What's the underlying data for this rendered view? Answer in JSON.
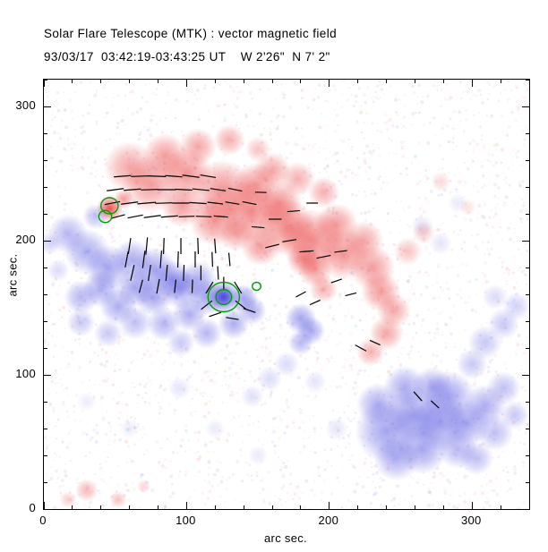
{
  "chart_data": {
    "type": "heatmap",
    "title": "Solar Flare Telescope (MTK) : vector magnetic field",
    "subtitle": "93/03/17  03:42:19-03:43:25 UT    W 2'26\"  N 7' 2\"",
    "xlabel": "arc sec.",
    "ylabel": "arc sec.",
    "xlim": [
      0,
      340
    ],
    "ylim": [
      0,
      320
    ],
    "xticks": [
      0,
      100,
      200,
      300
    ],
    "yticks": [
      0,
      100,
      200,
      300
    ],
    "minor_tick_interval": 20,
    "grid": false,
    "legend": false,
    "colors": {
      "positive_polarity": "#e83737",
      "negative_polarity": "#4848de",
      "contour": "#00a000",
      "vector": "#000000",
      "background": "#ffffff"
    },
    "blobs": [
      [
        60,
        255,
        18,
        1,
        0.45
      ],
      [
        85,
        263,
        16,
        1,
        0.5
      ],
      [
        108,
        270,
        13,
        1,
        0.45
      ],
      [
        130,
        275,
        11,
        1,
        0.4
      ],
      [
        150,
        268,
        9,
        1,
        0.3
      ],
      [
        75,
        242,
        20,
        1,
        0.5
      ],
      [
        100,
        250,
        18,
        1,
        0.55
      ],
      [
        125,
        237,
        22,
        1,
        0.55
      ],
      [
        148,
        242,
        15,
        1,
        0.5
      ],
      [
        160,
        252,
        13,
        1,
        0.45
      ],
      [
        178,
        246,
        12,
        1,
        0.4
      ],
      [
        196,
        236,
        11,
        1,
        0.4
      ],
      [
        145,
        222,
        22,
        1,
        0.6
      ],
      [
        165,
        228,
        16,
        1,
        0.55
      ],
      [
        120,
        215,
        18,
        1,
        0.55
      ],
      [
        97,
        226,
        15,
        1,
        0.5
      ],
      [
        135,
        205,
        12,
        1,
        0.45
      ],
      [
        152,
        196,
        14,
        1,
        0.5
      ],
      [
        170,
        210,
        20,
        1,
        0.6
      ],
      [
        182,
        186,
        12,
        1,
        0.5
      ],
      [
        188,
        200,
        22,
        1,
        0.6
      ],
      [
        205,
        212,
        15,
        1,
        0.5
      ],
      [
        210,
        190,
        18,
        1,
        0.55
      ],
      [
        224,
        200,
        14,
        1,
        0.45
      ],
      [
        230,
        180,
        16,
        1,
        0.5
      ],
      [
        196,
        164,
        10,
        1,
        0.4
      ],
      [
        190,
        178,
        12,
        1,
        0.5
      ],
      [
        236,
        162,
        14,
        1,
        0.5
      ],
      [
        245,
        148,
        12,
        1,
        0.45
      ],
      [
        240,
        131,
        12,
        1,
        0.45
      ],
      [
        229,
        117,
        10,
        1,
        0.4
      ],
      [
        46,
        224,
        9,
        1,
        0.85
      ],
      [
        56,
        231,
        7,
        1,
        0.5
      ],
      [
        255,
        192,
        10,
        1,
        0.3
      ],
      [
        266,
        206,
        8,
        1,
        0.25
      ],
      [
        278,
        244,
        7,
        1,
        0.2
      ],
      [
        297,
        225,
        6,
        1,
        0.15
      ],
      [
        30,
        14,
        8,
        1,
        0.35
      ],
      [
        52,
        7,
        6,
        1,
        0.3
      ],
      [
        17,
        7,
        6,
        1,
        0.25
      ],
      [
        70,
        17,
        5,
        1,
        0.2
      ],
      [
        17,
        205,
        14,
        -1,
        0.4
      ],
      [
        30,
        192,
        16,
        -1,
        0.45
      ],
      [
        45,
        180,
        16,
        -1,
        0.5
      ],
      [
        62,
        186,
        14,
        -1,
        0.45
      ],
      [
        77,
        178,
        16,
        -1,
        0.5
      ],
      [
        90,
        171,
        14,
        -1,
        0.5
      ],
      [
        36,
        218,
        9,
        -1,
        0.35
      ],
      [
        64,
        165,
        14,
        -1,
        0.5
      ],
      [
        40,
        164,
        13,
        -1,
        0.45
      ],
      [
        26,
        158,
        12,
        -1,
        0.4
      ],
      [
        52,
        151,
        13,
        -1,
        0.45
      ],
      [
        77,
        158,
        13,
        -1,
        0.5
      ],
      [
        96,
        164,
        14,
        -1,
        0.5
      ],
      [
        108,
        171,
        13,
        -1,
        0.45
      ],
      [
        114,
        158,
        13,
        -1,
        0.5
      ],
      [
        102,
        145,
        12,
        -1,
        0.45
      ],
      [
        84,
        138,
        12,
        -1,
        0.4
      ],
      [
        64,
        139,
        12,
        -1,
        0.35
      ],
      [
        126,
        158,
        12,
        -1,
        0.7
      ],
      [
        126,
        158,
        7,
        -1,
        0.9
      ],
      [
        140,
        157,
        10,
        -1,
        0.5
      ],
      [
        146,
        148,
        10,
        -1,
        0.45
      ],
      [
        133,
        138,
        11,
        -1,
        0.45
      ],
      [
        114,
        131,
        11,
        -1,
        0.4
      ],
      [
        96,
        124,
        10,
        -1,
        0.3
      ],
      [
        45,
        131,
        10,
        -1,
        0.3
      ],
      [
        26,
        139,
        10,
        -1,
        0.3
      ],
      [
        4,
        198,
        8,
        -1,
        0.25
      ],
      [
        10,
        178,
        8,
        -1,
        0.2
      ],
      [
        180,
        142,
        11,
        -1,
        0.5
      ],
      [
        187,
        133,
        10,
        -1,
        0.5
      ],
      [
        180,
        124,
        9,
        -1,
        0.4
      ],
      [
        240,
        58,
        22,
        -1,
        0.5
      ],
      [
        259,
        70,
        20,
        -1,
        0.55
      ],
      [
        278,
        64,
        20,
        -1,
        0.55
      ],
      [
        265,
        45,
        18,
        -1,
        0.5
      ],
      [
        247,
        38,
        16,
        -1,
        0.45
      ],
      [
        284,
        84,
        18,
        -1,
        0.5
      ],
      [
        297,
        64,
        16,
        -1,
        0.5
      ],
      [
        309,
        77,
        15,
        -1,
        0.45
      ],
      [
        253,
        91,
        15,
        -1,
        0.45
      ],
      [
        234,
        78,
        15,
        -1,
        0.45
      ],
      [
        272,
        91,
        14,
        -1,
        0.45
      ],
      [
        290,
        45,
        14,
        -1,
        0.4
      ],
      [
        316,
        57,
        13,
        -1,
        0.35
      ],
      [
        303,
        38,
        12,
        -1,
        0.35
      ],
      [
        322,
        90,
        12,
        -1,
        0.35
      ],
      [
        330,
        70,
        10,
        -1,
        0.3
      ],
      [
        309,
        124,
        12,
        -1,
        0.3
      ],
      [
        322,
        138,
        11,
        -1,
        0.3
      ],
      [
        331,
        151,
        10,
        -1,
        0.25
      ],
      [
        316,
        158,
        9,
        -1,
        0.2
      ],
      [
        300,
        108,
        11,
        -1,
        0.3
      ],
      [
        265,
        211,
        8,
        -1,
        0.15
      ],
      [
        278,
        198,
        8,
        -1,
        0.15
      ],
      [
        290,
        228,
        7,
        -1,
        0.12
      ],
      [
        158,
        97,
        9,
        -1,
        0.2
      ],
      [
        146,
        84,
        8,
        -1,
        0.18
      ],
      [
        170,
        108,
        9,
        -1,
        0.2
      ],
      [
        190,
        95,
        8,
        -1,
        0.15
      ],
      [
        205,
        60,
        8,
        -1,
        0.15
      ],
      [
        150,
        40,
        7,
        -1,
        0.12
      ],
      [
        120,
        60,
        7,
        -1,
        0.12
      ],
      [
        95,
        90,
        8,
        -1,
        0.15
      ],
      [
        60,
        60,
        7,
        -1,
        0.1
      ],
      [
        30,
        80,
        7,
        -1,
        0.1
      ]
    ],
    "vectors": [
      [
        55,
        248,
        185,
        12
      ],
      [
        67,
        248,
        182,
        12
      ],
      [
        79,
        248,
        178,
        13
      ],
      [
        91,
        248,
        175,
        12
      ],
      [
        103,
        248,
        172,
        12
      ],
      [
        115,
        248,
        170,
        11
      ],
      [
        50,
        238,
        188,
        12
      ],
      [
        62,
        238,
        185,
        12
      ],
      [
        74,
        238,
        182,
        12
      ],
      [
        86,
        238,
        180,
        13
      ],
      [
        98,
        238,
        177,
        12
      ],
      [
        110,
        238,
        174,
        12
      ],
      [
        122,
        238,
        171,
        11
      ],
      [
        134,
        238,
        168,
        10
      ],
      [
        48,
        228,
        192,
        11
      ],
      [
        60,
        228,
        188,
        12
      ],
      [
        72,
        228,
        185,
        13
      ],
      [
        84,
        228,
        182,
        12
      ],
      [
        96,
        228,
        180,
        12
      ],
      [
        108,
        228,
        176,
        12
      ],
      [
        120,
        228,
        173,
        11
      ],
      [
        132,
        228,
        170,
        10
      ],
      [
        144,
        228,
        168,
        10
      ],
      [
        52,
        218,
        196,
        10
      ],
      [
        64,
        218,
        192,
        11
      ],
      [
        76,
        218,
        188,
        12
      ],
      [
        88,
        218,
        185,
        12
      ],
      [
        100,
        218,
        182,
        11
      ],
      [
        112,
        218,
        178,
        11
      ],
      [
        124,
        218,
        175,
        10
      ],
      [
        60,
        196,
        262,
        12
      ],
      [
        72,
        196,
        265,
        13
      ],
      [
        84,
        196,
        268,
        12
      ],
      [
        96,
        196,
        270,
        12
      ],
      [
        108,
        196,
        272,
        12
      ],
      [
        120,
        196,
        274,
        11
      ],
      [
        58,
        186,
        260,
        12
      ],
      [
        70,
        186,
        263,
        13
      ],
      [
        82,
        186,
        266,
        13
      ],
      [
        94,
        186,
        268,
        12
      ],
      [
        106,
        186,
        270,
        12
      ],
      [
        118,
        186,
        272,
        11
      ],
      [
        130,
        186,
        275,
        10
      ],
      [
        62,
        176,
        258,
        12
      ],
      [
        74,
        176,
        262,
        12
      ],
      [
        86,
        176,
        265,
        12
      ],
      [
        98,
        176,
        268,
        12
      ],
      [
        110,
        176,
        270,
        11
      ],
      [
        122,
        176,
        273,
        10
      ],
      [
        68,
        166,
        256,
        10
      ],
      [
        80,
        166,
        260,
        11
      ],
      [
        92,
        166,
        264,
        10
      ],
      [
        104,
        166,
        268,
        10
      ],
      [
        116,
        165,
        240,
        10
      ],
      [
        126,
        168,
        270,
        10
      ],
      [
        136,
        165,
        300,
        10
      ],
      [
        114,
        152,
        220,
        10
      ],
      [
        138,
        152,
        320,
        10
      ],
      [
        120,
        145,
        200,
        9
      ],
      [
        132,
        142,
        170,
        9
      ],
      [
        144,
        148,
        340,
        9
      ],
      [
        160,
        196,
        15,
        10
      ],
      [
        172,
        200,
        10,
        10
      ],
      [
        184,
        192,
        5,
        10
      ],
      [
        196,
        188,
        12,
        10
      ],
      [
        208,
        192,
        8,
        9
      ],
      [
        150,
        210,
        355,
        9
      ],
      [
        162,
        216,
        0,
        9
      ],
      [
        175,
        222,
        5,
        9
      ],
      [
        188,
        228,
        0,
        8
      ],
      [
        152,
        236,
        358,
        8
      ],
      [
        222,
        120,
        330,
        9
      ],
      [
        232,
        124,
        335,
        8
      ],
      [
        262,
        84,
        310,
        9
      ],
      [
        274,
        78,
        315,
        8
      ],
      [
        180,
        160,
        30,
        8
      ],
      [
        190,
        154,
        25,
        8
      ],
      [
        205,
        170,
        20,
        8
      ],
      [
        215,
        160,
        15,
        8
      ]
    ],
    "contours": [
      {
        "x": 46,
        "y": 226,
        "r": 6
      },
      {
        "x": 43,
        "y": 218,
        "r": 4.5
      },
      {
        "x": 126,
        "y": 158,
        "r": 11
      },
      {
        "x": 126,
        "y": 158,
        "r": 5.5
      },
      {
        "x": 149,
        "y": 166,
        "r": 3
      }
    ]
  }
}
